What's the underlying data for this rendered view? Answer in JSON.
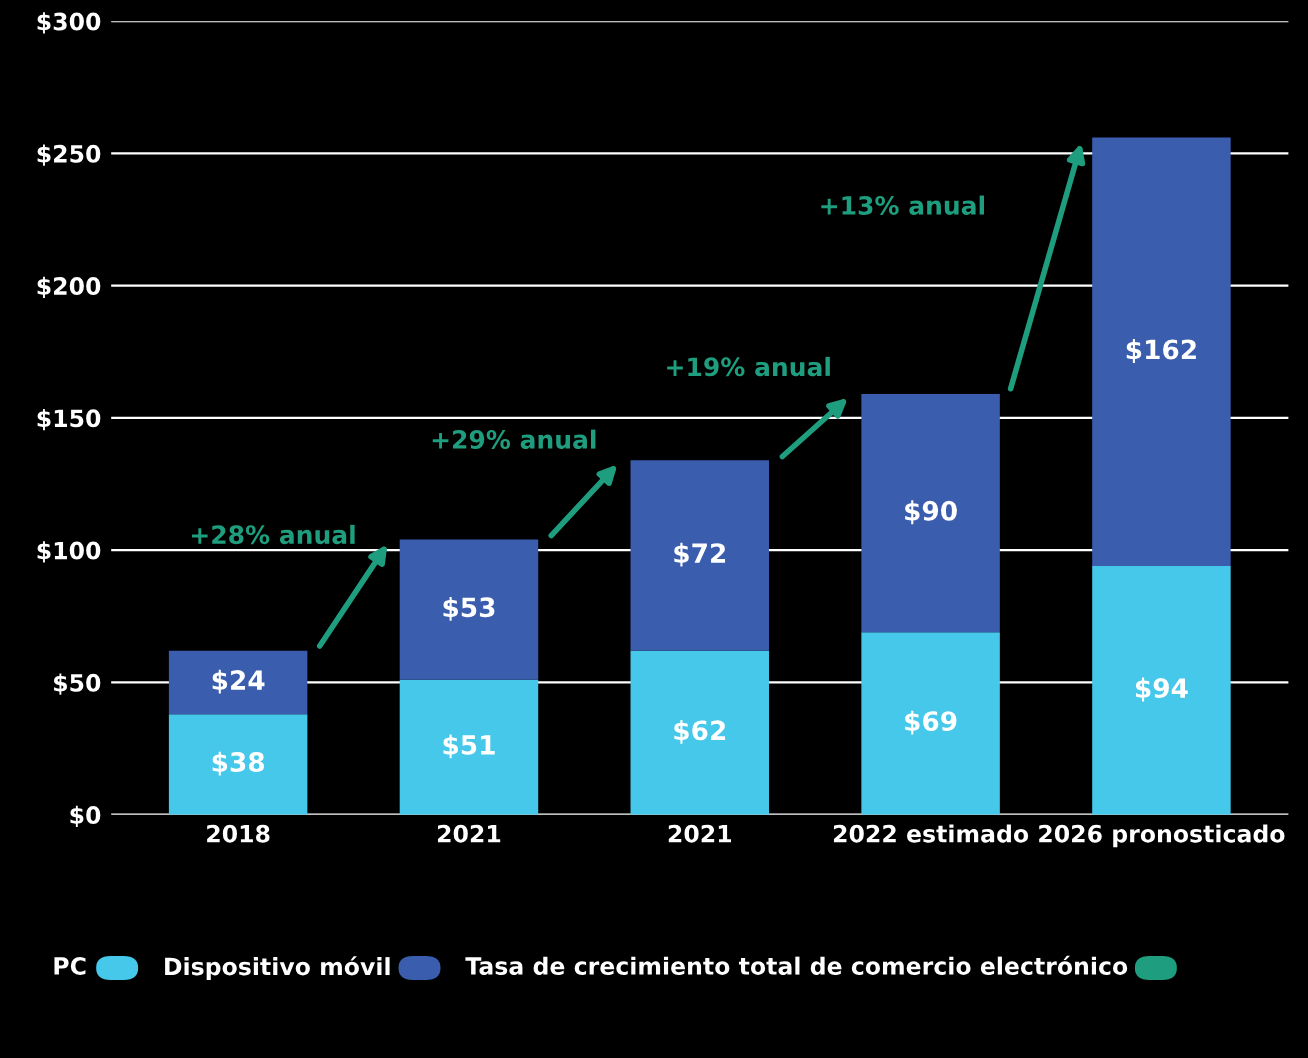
{
  "chart_data": {
    "type": "bar",
    "stacked": true,
    "categories": [
      "2018",
      "2021",
      "2021",
      "2022 estimado",
      "2026 pronosticado"
    ],
    "series": [
      {
        "name": "PC",
        "color": "#45c8ea",
        "values": [
          38,
          51,
          62,
          69,
          94
        ],
        "value_labels": [
          "$38",
          "$51",
          "$62",
          "$69",
          "$94"
        ]
      },
      {
        "name": "Dispositivo móvil",
        "color": "#3a5dae",
        "values": [
          24,
          53,
          72,
          90,
          162
        ],
        "value_labels": [
          "$24",
          "$53",
          "$72",
          "$90",
          "$162"
        ]
      }
    ],
    "annotations": [
      "+28% anual",
      "+29% anual",
      "+19% anual",
      "+13% anual",
      "Tasa de crecimiento total de comercio electrónico"
    ],
    "ylim": [
      0,
      300
    ],
    "yticks": [
      {
        "value": 0,
        "label": "$0"
      },
      {
        "value": 50,
        "label": "$50"
      },
      {
        "value": 100,
        "label": "$100"
      },
      {
        "value": 150,
        "label": "$150"
      },
      {
        "value": 200,
        "label": "$200"
      },
      {
        "value": 250,
        "label": "$250"
      },
      {
        "value": 300,
        "label": "$300"
      }
    ],
    "grid": "y",
    "legend": "bottom"
  }
}
